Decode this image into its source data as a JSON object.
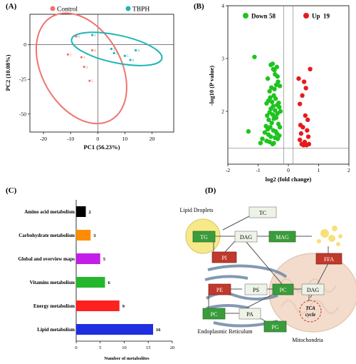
{
  "panels": {
    "a": "(A)",
    "b": "(B)",
    "c": "(C)",
    "d": "(D)"
  },
  "chart_data": [
    {
      "type": "scatter",
      "panel": "(A)",
      "xlabel": "PC1 (56.23%)",
      "ylabel": "PC2 (10.08%)",
      "xlim": [
        -25,
        28
      ],
      "ylim": [
        -63,
        22
      ],
      "xticks": [
        -20,
        -10,
        0,
        10,
        20
      ],
      "yticks": [
        -50,
        -25,
        0
      ],
      "series": [
        {
          "name": "Control",
          "color": "#f0736e",
          "labels": [
            "6",
            "4",
            "2",
            "1",
            "3",
            "5"
          ],
          "x": [
            -8,
            -2,
            -11,
            -6,
            -5,
            -3
          ],
          "y": [
            6,
            -4,
            -7,
            -9,
            -16,
            -26
          ]
        },
        {
          "name": "TBPH",
          "color": "#21b5b5",
          "labels": [
            "1",
            "2",
            "4",
            "3",
            "5",
            "6"
          ],
          "x": [
            -2,
            5,
            14,
            6,
            10,
            12
          ],
          "y": [
            7,
            -3,
            -4,
            -6,
            -8,
            -11
          ]
        }
      ],
      "ellipses": [
        {
          "series": "Control",
          "cx": -6,
          "cy": -17,
          "rx": 14.5,
          "ry": 43,
          "angle": -30
        },
        {
          "series": "TBPH",
          "cx": 7,
          "cy": -3,
          "rx": 17,
          "ry": 10,
          "angle": 12
        }
      ]
    },
    {
      "type": "scatter",
      "panel": "(B)",
      "xlabel": "log2 (fold change)",
      "ylabel": "-log10 (P value)",
      "xlim": [
        -2,
        2
      ],
      "ylim": [
        1.0,
        4.0
      ],
      "xticks": [
        -2,
        -1,
        0,
        1,
        2
      ],
      "yticks": [
        2,
        3,
        4
      ],
      "threshold_y": 1.3,
      "legend": [
        {
          "name": "Down",
          "count": "58",
          "color": "#1ec41e"
        },
        {
          "name": "Up",
          "count": "19",
          "color": "#e81a1a"
        }
      ],
      "down": {
        "x": [
          -1.12,
          -1.32,
          -0.92,
          -0.86,
          -0.72,
          -0.62,
          -0.52,
          -0.48,
          -0.66,
          -0.58,
          -0.44,
          -0.35,
          -0.3,
          -0.78,
          -0.68,
          -0.74,
          -0.6,
          -0.5,
          -0.42,
          -0.38,
          -0.55,
          -0.65,
          -0.48,
          -0.33,
          -0.28,
          -0.7,
          -0.62,
          -0.52,
          -0.45,
          -0.4,
          -0.36,
          -0.58,
          -0.5,
          -0.44,
          -0.3,
          -0.26,
          -0.72,
          -0.66,
          -0.6,
          -0.54,
          -0.48,
          -0.42,
          -0.37,
          -0.32,
          -0.62,
          -0.56,
          -0.46,
          -0.4,
          -0.34,
          -0.28,
          -0.68,
          -0.58,
          -0.5,
          -0.44,
          -0.38,
          -0.52,
          -0.46,
          -0.36
        ],
        "y": [
          3.03,
          1.62,
          1.4,
          1.48,
          1.44,
          1.42,
          1.38,
          1.4,
          1.56,
          1.52,
          1.5,
          1.48,
          1.54,
          1.6,
          1.66,
          1.72,
          1.7,
          1.64,
          1.62,
          1.58,
          1.78,
          1.84,
          1.86,
          1.76,
          1.7,
          1.92,
          1.98,
          1.94,
          1.9,
          1.88,
          1.96,
          2.05,
          2.1,
          2.02,
          2.08,
          2.0,
          2.15,
          2.2,
          2.26,
          2.18,
          2.3,
          2.24,
          2.12,
          2.16,
          2.38,
          2.45,
          2.42,
          2.5,
          2.56,
          2.48,
          2.62,
          2.88,
          2.8,
          2.7,
          2.84,
          2.9,
          2.78,
          2.66
        ]
      },
      "up": {
        "x": [
          0.72,
          0.34,
          0.52,
          0.58,
          0.46,
          0.38,
          0.56,
          0.64,
          0.4,
          0.48,
          0.62,
          0.42,
          0.66,
          0.38,
          0.54,
          0.44,
          0.5,
          0.6,
          0.68
        ],
        "y": [
          2.8,
          2.62,
          2.56,
          2.44,
          2.3,
          2.14,
          1.92,
          1.84,
          1.74,
          1.7,
          1.64,
          1.58,
          1.52,
          1.46,
          1.42,
          1.38,
          1.36,
          1.36,
          1.38
        ]
      }
    },
    {
      "type": "bar",
      "panel": "(C)",
      "orientation": "horizontal",
      "xlabel": "Number of metabolites",
      "xlim": [
        0,
        20
      ],
      "xticks": [
        0,
        5,
        10,
        15,
        20
      ],
      "categories": [
        "Amino acid metabolism",
        "Carbohydrate metabolism",
        "Global and overview maps",
        "Vitamins metabolism",
        "Energy metabolism",
        "Lipid metabolism"
      ],
      "values": [
        2,
        3,
        5,
        6,
        9,
        16
      ],
      "colors": [
        "#000000",
        "#ff8c00",
        "#c31ee8",
        "#23b82b",
        "#ff2020",
        "#1f2fe0"
      ]
    }
  ],
  "pathway": {
    "lipid_droplets": "Lipid Droplets",
    "er": "Endoplasmic Reticulum",
    "mito": "Mitochondria",
    "tca": "TCA cycle",
    "nodes": {
      "tc": "TC",
      "tg": "TG",
      "dag1": "DAG",
      "mag": "MAG",
      "pi": "PI",
      "ffa": "FFA",
      "pe": "PE",
      "ps": "PS",
      "pc1": "PC",
      "dag2": "DAG",
      "pc2": "PC",
      "pa": "PA",
      "pg": "PG"
    },
    "colors": {
      "green": "#3a9c3a",
      "red": "#c0392b",
      "pale": "#eef3e8",
      "droplet": "#f7e98a",
      "mito": "#f3dccc",
      "er": "#6d88a6"
    }
  }
}
